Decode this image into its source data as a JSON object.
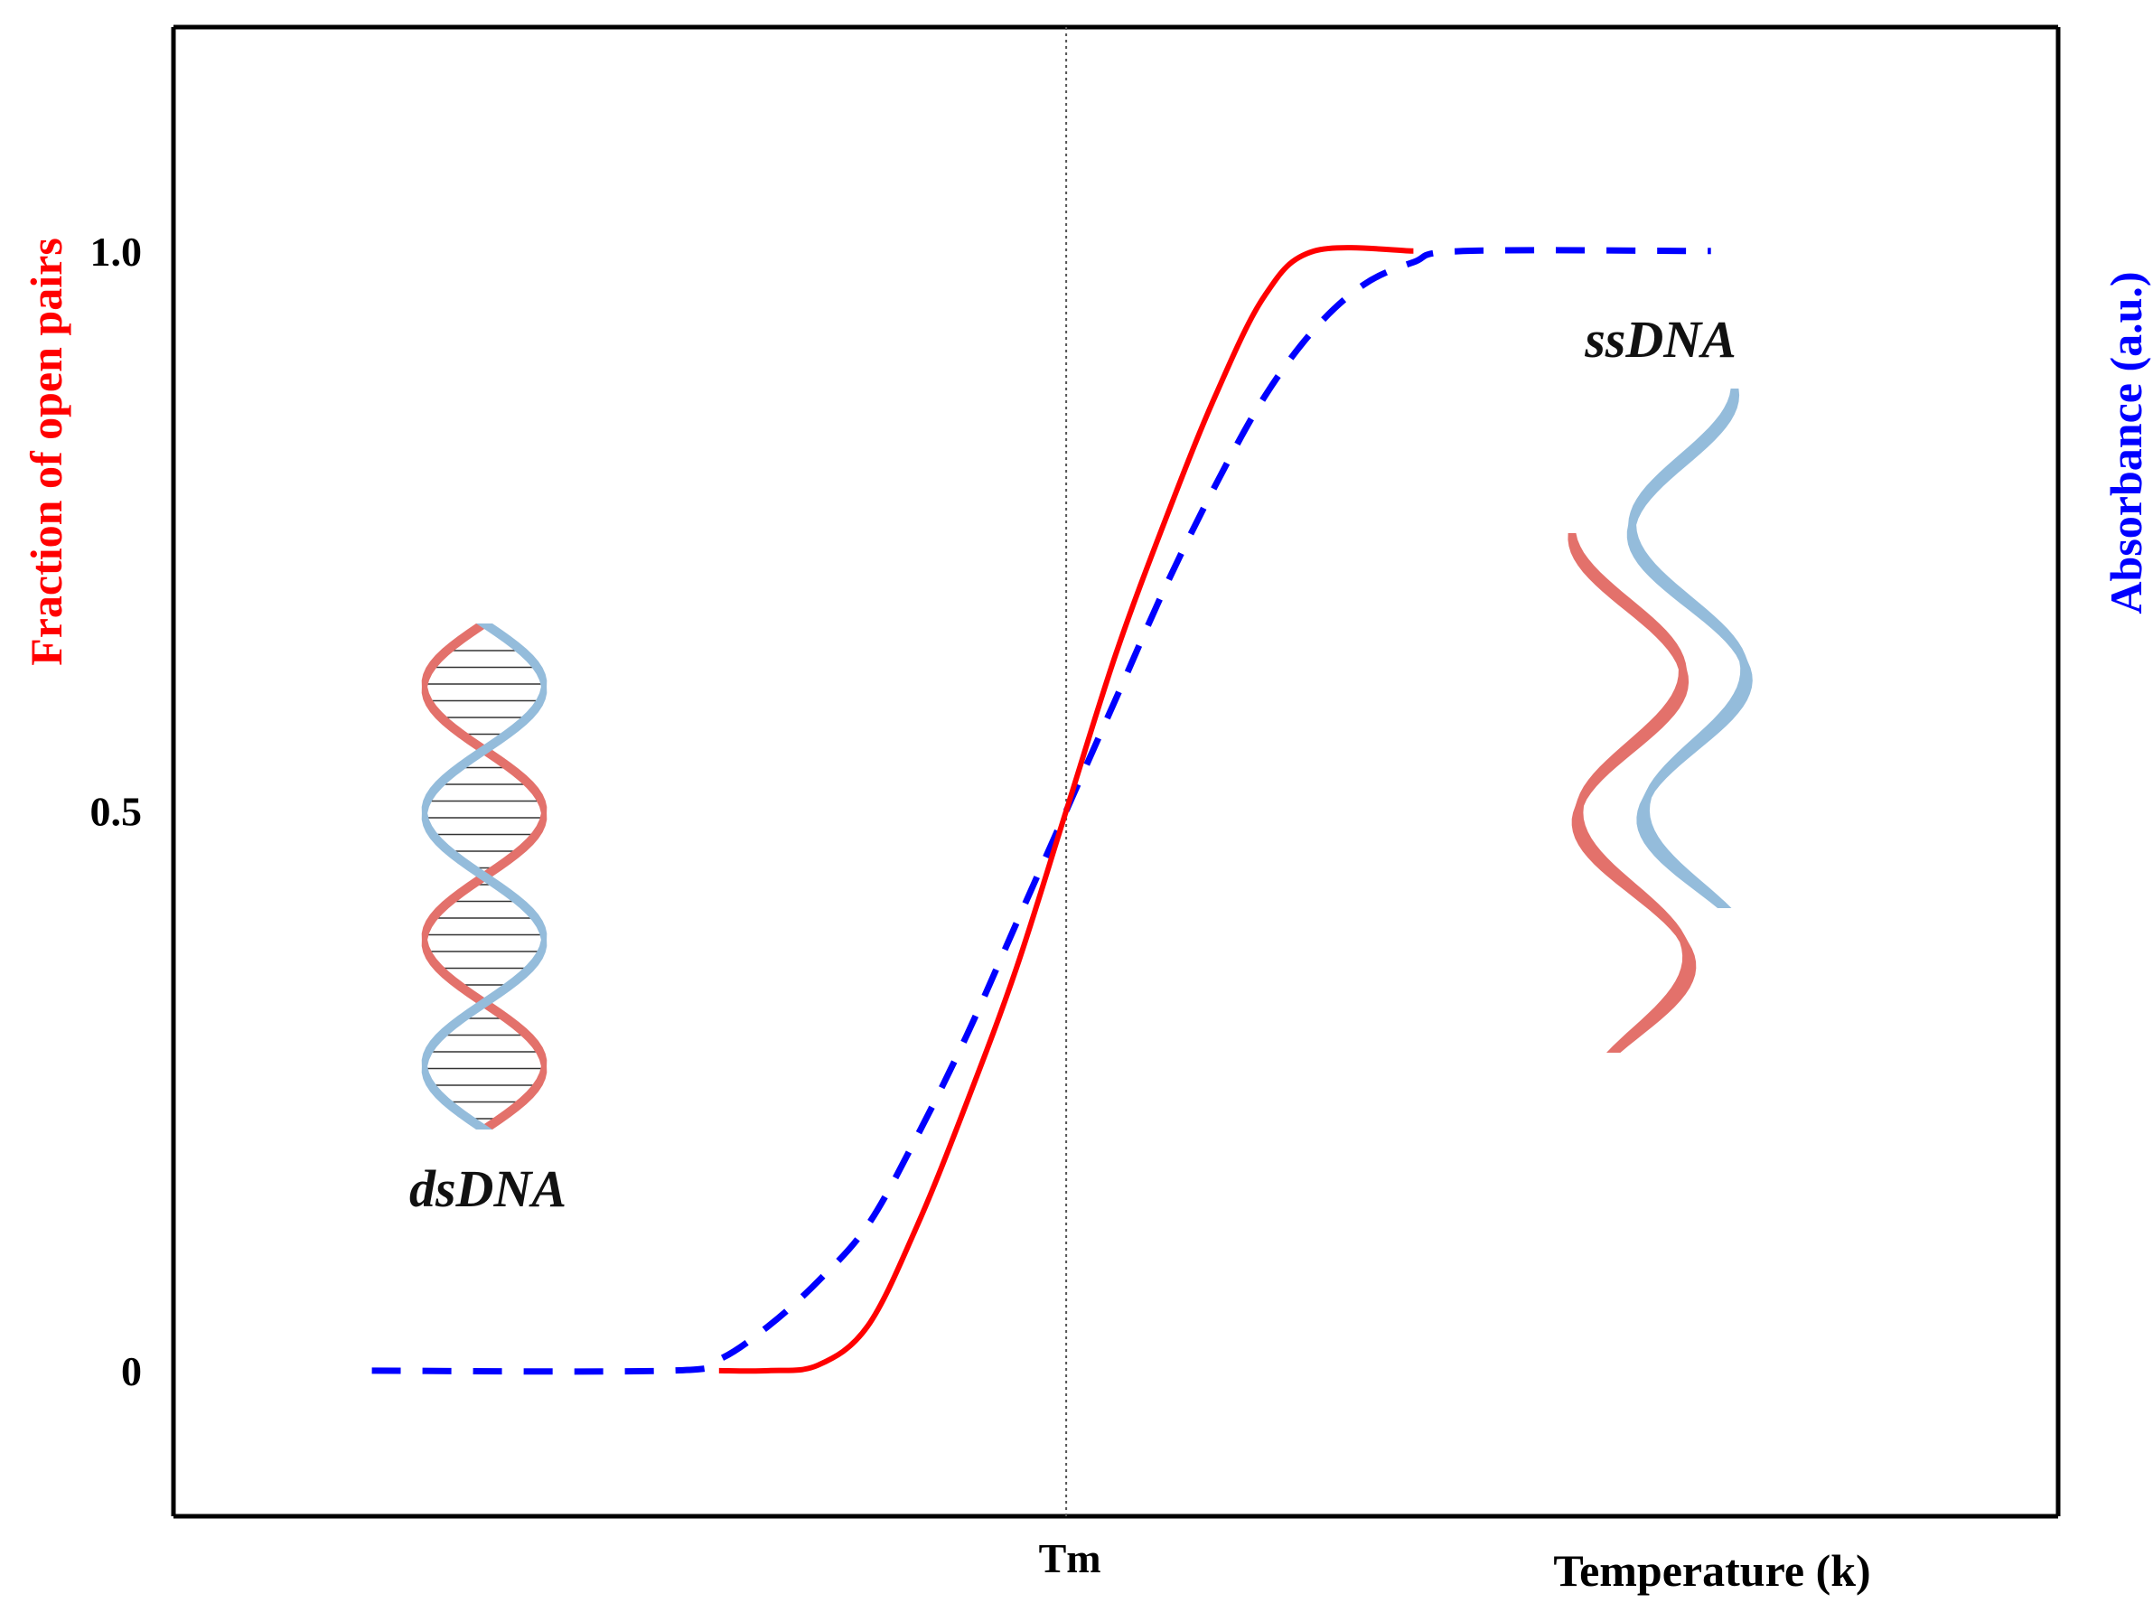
{
  "chart_data": {
    "type": "line",
    "title": "",
    "xlabel": "Temperature (k)",
    "ylabel": "Fraction of open pairs",
    "ylabel_right": "Absorbance (a.u.)",
    "x_ticks": [
      {
        "value": 0,
        "label": "Tm"
      }
    ],
    "y_ticks": [
      {
        "value": 0,
        "label": "0"
      },
      {
        "value": 0.5,
        "label": "0.5"
      },
      {
        "value": 1.0,
        "label": "1.0"
      }
    ],
    "xlim": [
      -9,
      10
    ],
    "ylim": [
      -0.13,
      1.2
    ],
    "grid": false,
    "vertical_marker_x": 0,
    "series": [
      {
        "name": "Fraction of open pairs",
        "color": "#ff0000",
        "style": "solid",
        "x": [
          -3.5,
          -3.0,
          -2.5,
          -2.0,
          -1.5,
          -1.0,
          -0.5,
          0.0,
          0.5,
          1.0,
          1.5,
          2.0,
          2.5,
          3.5
        ],
        "y": [
          0.0,
          0.0,
          0.005,
          0.04,
          0.13,
          0.24,
          0.36,
          0.5,
          0.64,
          0.76,
          0.87,
          0.96,
          1.0,
          1.0
        ]
      },
      {
        "name": "Absorbance",
        "color": "#0000ff",
        "style": "dashed",
        "x": [
          -7.0,
          -4.0,
          -3.5,
          -3.0,
          -2.5,
          -2.0,
          -1.5,
          -1.0,
          -0.5,
          0.0,
          0.5,
          1.0,
          1.5,
          2.0,
          2.5,
          3.0,
          3.5,
          4.0,
          6.5
        ],
        "y": [
          0.0,
          0.0,
          0.01,
          0.04,
          0.08,
          0.13,
          0.21,
          0.3,
          0.4,
          0.5,
          0.6,
          0.7,
          0.79,
          0.87,
          0.93,
          0.97,
          0.99,
          1.0,
          1.0
        ]
      }
    ],
    "annotations": {
      "left": "dsDNA",
      "right": "ssDNA"
    }
  }
}
